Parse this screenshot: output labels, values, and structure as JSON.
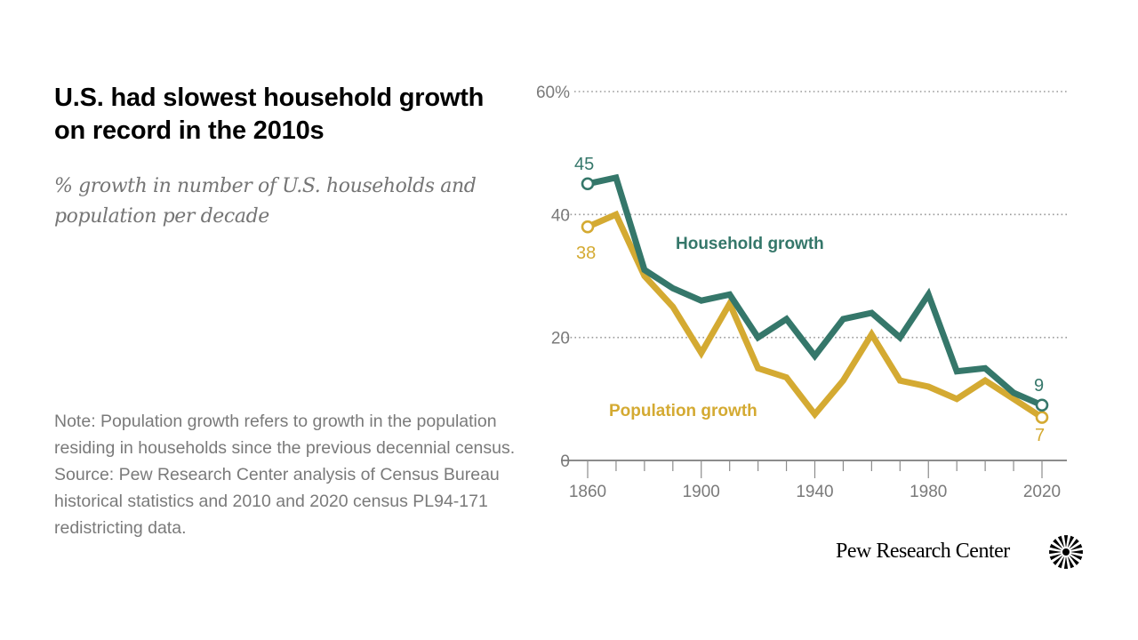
{
  "header": {
    "title": "U.S. had slowest household growth on record in the 2010s",
    "subtitle": "% growth in number of U.S. households and population per decade"
  },
  "footer": {
    "note": "Note: Population growth refers to growth in the population residing in households since the previous decennial census.",
    "source": "Source: Pew Research Center analysis of Census Bureau historical statistics and 2010 and 2020 census PL94-171 redistricting data.",
    "brand": "Pew Research Center",
    "logo_icon": "sunburst-logo-icon"
  },
  "colors": {
    "household": "#35776A",
    "population": "#D4AA32",
    "axis_text": "#7a7a7a",
    "gridline": "#9a9a9a",
    "axis_line": "#8c8c8c"
  },
  "chart_data": {
    "type": "line",
    "title": "U.S. had slowest household growth on record in the 2010s",
    "subtitle": "% growth in number of U.S. households and population per decade",
    "xlabel": "",
    "ylabel": "",
    "x": [
      1860,
      1870,
      1880,
      1890,
      1900,
      1910,
      1920,
      1930,
      1940,
      1950,
      1960,
      1970,
      1980,
      1990,
      2000,
      2010,
      2020
    ],
    "xlim": [
      1860,
      2020
    ],
    "x_ticks": [
      1860,
      1870,
      1880,
      1890,
      1900,
      1910,
      1920,
      1930,
      1940,
      1950,
      1960,
      1970,
      1980,
      1990,
      2000,
      2010,
      2020
    ],
    "x_tick_labels": [
      {
        "value": 1860,
        "label": "1860"
      },
      {
        "value": 1900,
        "label": "1900"
      },
      {
        "value": 1940,
        "label": "1940"
      },
      {
        "value": 1980,
        "label": "1980"
      },
      {
        "value": 2020,
        "label": "2020"
      }
    ],
    "ylim": [
      0,
      60
    ],
    "y_ticks": [
      {
        "value": 0,
        "label": "0"
      },
      {
        "value": 20,
        "label": "20"
      },
      {
        "value": 40,
        "label": "40"
      },
      {
        "value": 60,
        "label": "60%"
      }
    ],
    "grid": true,
    "legend": "inline",
    "series": [
      {
        "name": "Household growth",
        "key": "household",
        "values": [
          45,
          46,
          31,
          28,
          26,
          27,
          20,
          23,
          17,
          23,
          24,
          20,
          27,
          14.5,
          15,
          11,
          9
        ],
        "start_label": "45",
        "end_label": "9"
      },
      {
        "name": "Population growth",
        "key": "population",
        "values": [
          38,
          40,
          30,
          25,
          17.5,
          25.5,
          15,
          13.5,
          7.5,
          13,
          20.5,
          13,
          12,
          10,
          13,
          10,
          7
        ],
        "start_label": "38",
        "end_label": "7"
      }
    ]
  }
}
